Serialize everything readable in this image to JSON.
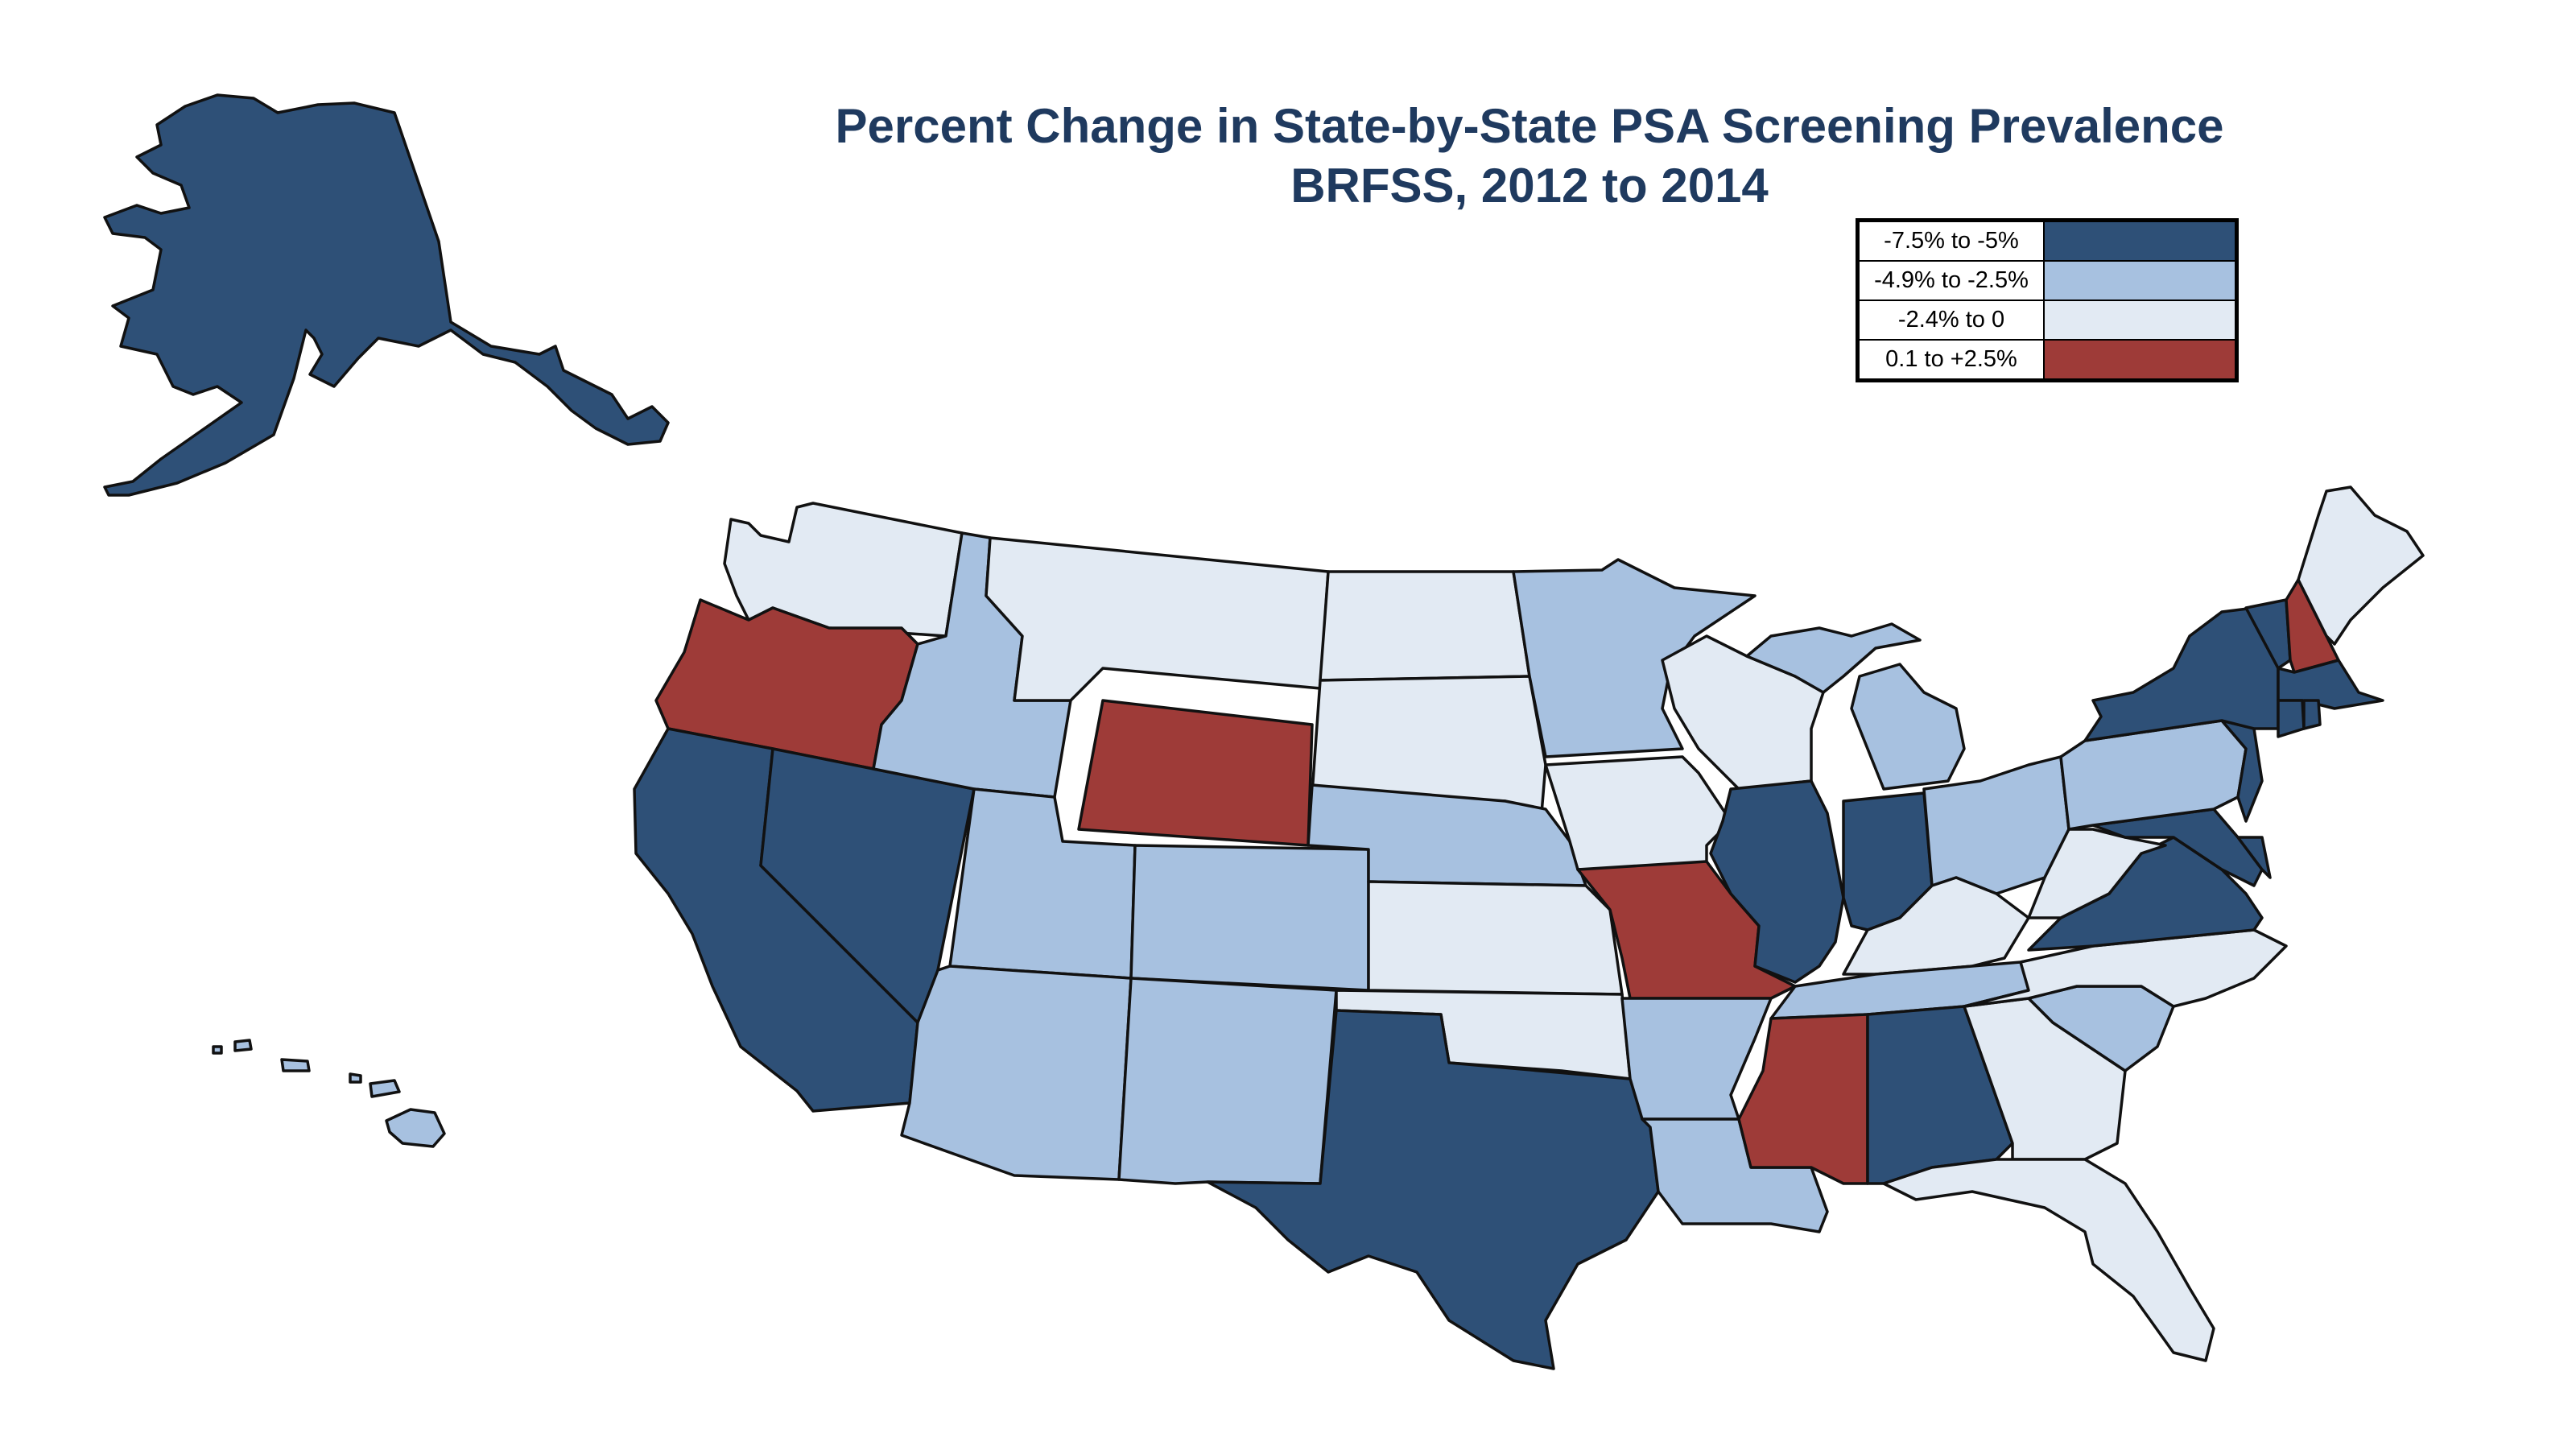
{
  "title": {
    "line1": "Percent Change in State-by-State PSA Screening Prevalence",
    "line2": "BRFSS, 2012 to 2014"
  },
  "legend": [
    {
      "label": "-7.5% to -5%",
      "color": "#2e5077"
    },
    {
      "label": "-4.9% to -2.5%",
      "color": "#a7c1e0"
    },
    {
      "label": "-2.4% to 0",
      "color": "#e2eaf3"
    },
    {
      "label": "0.1 to +2.5%",
      "color": "#9e3b38"
    }
  ],
  "states": {
    "AK": 0,
    "HI": 1,
    "WA": 2,
    "OR": 3,
    "CA": 0,
    "NV": 0,
    "ID": 1,
    "MT": 2,
    "WY": 3,
    "UT": 1,
    "CO": 1,
    "AZ": 1,
    "NM": 1,
    "ND": 2,
    "SD": 2,
    "NE": 1,
    "KS": 2,
    "OK": 2,
    "TX": 0,
    "MN": 1,
    "IA": 2,
    "MO": 3,
    "AR": 1,
    "LA": 1,
    "WI": 2,
    "IL": 0,
    "MS": 3,
    "MI": 1,
    "IN": 0,
    "OH": 1,
    "KY": 2,
    "TN": 1,
    "AL": 0,
    "GA": 2,
    "FL": 2,
    "SC": 1,
    "NC": 2,
    "VA": 0,
    "WV": 2,
    "PA": 1,
    "NY": 0,
    "VT": 0,
    "NH": 3,
    "ME": 2,
    "MA": 0,
    "CT": 0,
    "RI": 0,
    "NJ": 0,
    "DE": 0,
    "MD": 0
  }
}
